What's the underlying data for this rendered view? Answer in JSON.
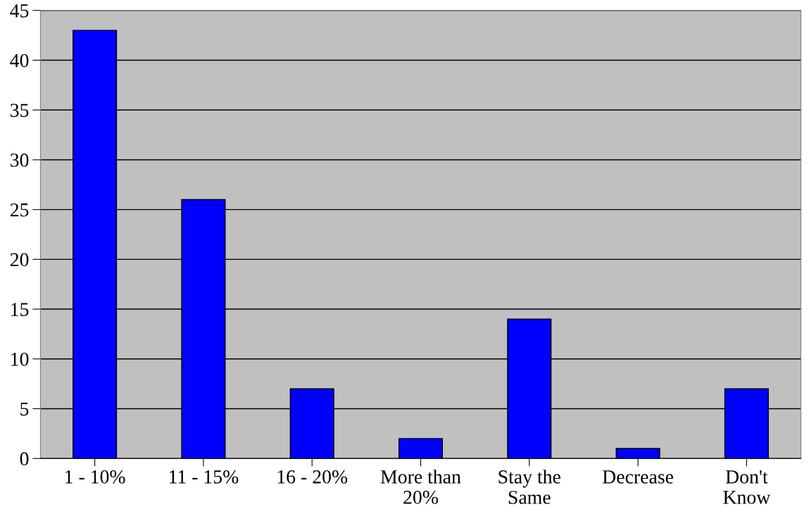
{
  "chart_data": {
    "type": "bar",
    "categories": [
      "1 - 10%",
      "11 - 15%",
      "16 - 20%",
      "More than\n20%",
      "Stay the\nSame",
      "Decrease",
      "Don't\nKnow"
    ],
    "values": [
      43,
      26,
      7,
      2,
      14,
      1,
      7
    ],
    "color": "#0000ff",
    "ylim": [
      0,
      45
    ],
    "yticks": [
      0,
      5,
      10,
      15,
      20,
      25,
      30,
      35,
      40,
      45
    ],
    "grid": "y"
  }
}
